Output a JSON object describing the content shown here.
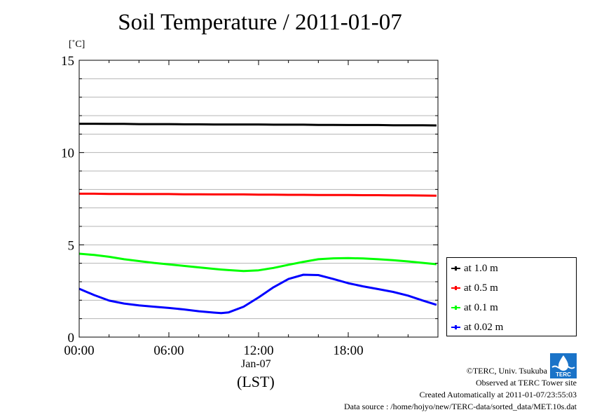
{
  "title": "Soil Temperature / 2011-01-07",
  "unit_label": "[˚C]",
  "x_date_label": "Jan-07",
  "x_axis_label": "(LST)",
  "footer": {
    "copyright": "©TERC, Univ. Tsukuba",
    "observed": "Observed at TERC Tower site",
    "created": "Created Automatically at 2011-01-07/23:55:03",
    "source": "Data source : /home/hojyo/new/TERC-data/sorted_data/MET.10s.dat"
  },
  "logo": {
    "text": "TERC",
    "icon": "terc-logo-icon"
  },
  "chart_data": {
    "type": "line",
    "xlabel": "(LST)",
    "ylabel": "[˚C]",
    "xlim": [
      0,
      24
    ],
    "ylim": [
      0,
      15
    ],
    "x_ticks": [
      0,
      6,
      12,
      18
    ],
    "x_tick_labels": [
      "00:00",
      "06:00",
      "12:00",
      "18:00"
    ],
    "y_ticks": [
      0,
      5,
      10,
      15
    ],
    "y_tick_labels": [
      "0",
      "5",
      "10",
      "15"
    ],
    "grid": "horizontal",
    "legend_position": "right",
    "x": [
      0,
      1,
      2,
      3,
      4,
      5,
      6,
      7,
      8,
      9,
      9.5,
      10,
      11,
      12,
      13,
      14,
      15,
      16,
      17,
      18,
      19,
      20,
      21,
      22,
      23,
      23.9
    ],
    "series": [
      {
        "name": "at 1.0 m",
        "color": "#000000",
        "values": [
          11.56,
          11.56,
          11.55,
          11.55,
          11.54,
          11.54,
          11.54,
          11.53,
          11.53,
          11.52,
          11.52,
          11.52,
          11.52,
          11.52,
          11.51,
          11.51,
          11.51,
          11.5,
          11.5,
          11.49,
          11.49,
          11.49,
          11.48,
          11.48,
          11.48,
          11.47
        ]
      },
      {
        "name": "at 0.5 m",
        "color": "#ff0000",
        "values": [
          7.77,
          7.77,
          7.76,
          7.76,
          7.75,
          7.75,
          7.75,
          7.74,
          7.74,
          7.73,
          7.73,
          7.73,
          7.73,
          7.72,
          7.72,
          7.71,
          7.71,
          7.7,
          7.7,
          7.7,
          7.69,
          7.69,
          7.68,
          7.68,
          7.67,
          7.66
        ]
      },
      {
        "name": "at 0.1 m",
        "color": "#00ff00",
        "values": [
          4.52,
          4.45,
          4.35,
          4.22,
          4.12,
          4.02,
          3.94,
          3.86,
          3.78,
          3.7,
          3.66,
          3.63,
          3.58,
          3.62,
          3.75,
          3.92,
          4.08,
          4.22,
          4.27,
          4.28,
          4.26,
          4.22,
          4.17,
          4.1,
          4.02,
          3.95
        ]
      },
      {
        "name": "at 0.02 m",
        "color": "#0000ff",
        "values": [
          2.62,
          2.28,
          1.98,
          1.82,
          1.72,
          1.65,
          1.58,
          1.5,
          1.4,
          1.33,
          1.3,
          1.34,
          1.65,
          2.15,
          2.7,
          3.15,
          3.38,
          3.36,
          3.15,
          2.92,
          2.75,
          2.6,
          2.45,
          2.25,
          1.98,
          1.75
        ]
      }
    ]
  }
}
